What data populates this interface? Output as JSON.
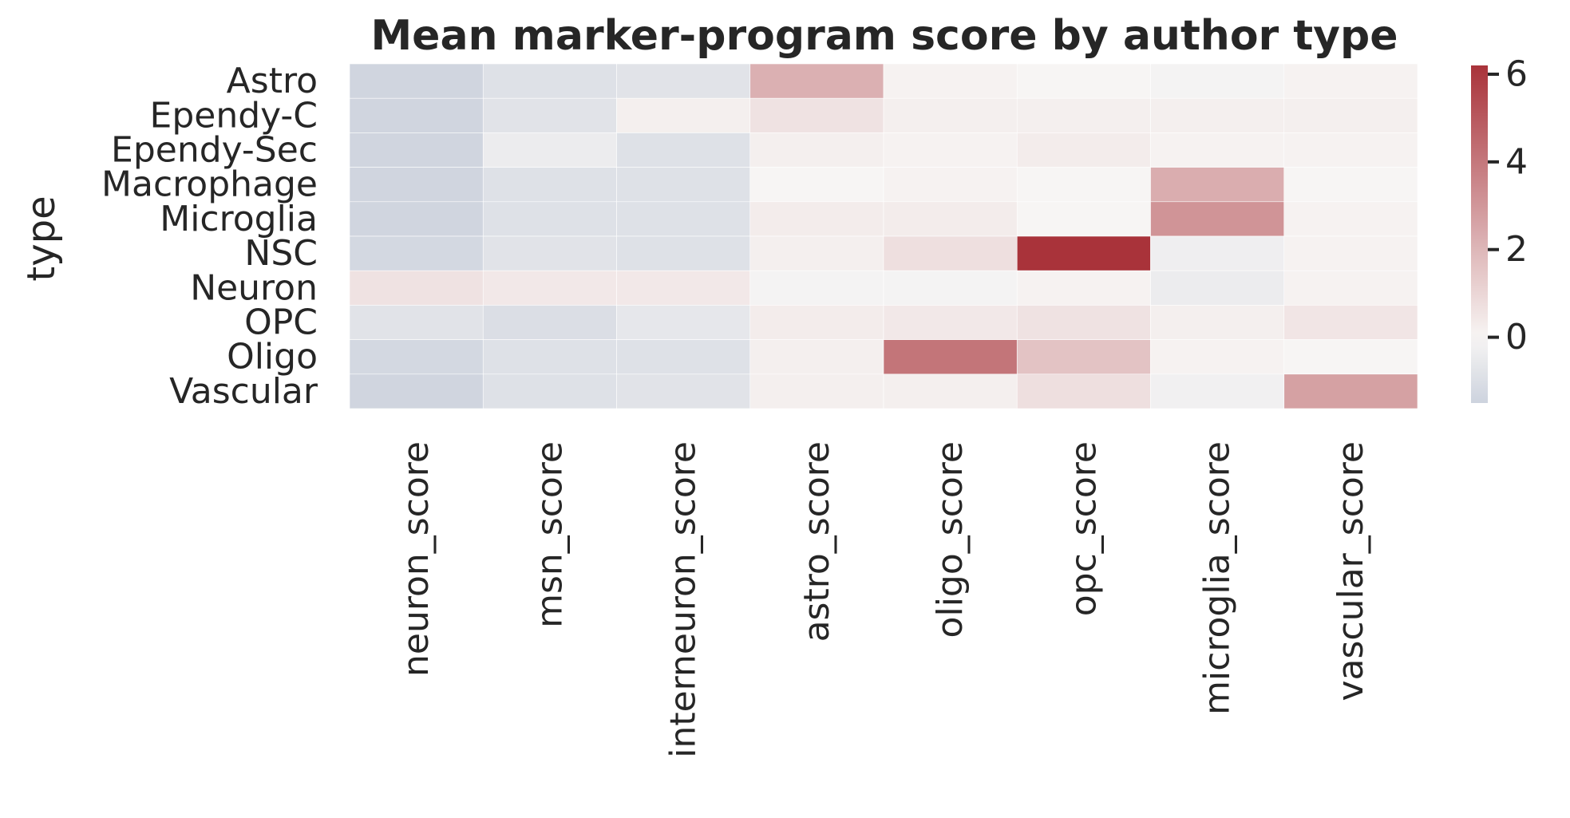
{
  "chart_data": {
    "type": "heatmap",
    "title": "Mean marker-program score by author type",
    "xlabel": "",
    "ylabel": "type",
    "columns": [
      "neuron_score",
      "msn_score",
      "interneuron_score",
      "astro_score",
      "oligo_score",
      "opc_score",
      "microglia_score",
      "vascular_score"
    ],
    "rows": [
      "Astro",
      "Ependy-C",
      "Ependy-Sec",
      "Macrophage",
      "Microglia",
      "NSC",
      "Neuron",
      "OPC",
      "Oligo",
      "Vascular"
    ],
    "values": [
      [
        -1.4,
        -0.9,
        -0.8,
        2.2,
        0.1,
        0.0,
        -0.1,
        0.1
      ],
      [
        -1.4,
        -0.8,
        0.2,
        0.6,
        0.2,
        0.2,
        0.2,
        0.2
      ],
      [
        -1.4,
        -0.4,
        -0.9,
        0.2,
        0.1,
        0.3,
        0.1,
        0.1
      ],
      [
        -1.4,
        -0.9,
        -0.9,
        0.0,
        0.1,
        0.0,
        2.3,
        0.0
      ],
      [
        -1.4,
        -0.9,
        -0.9,
        0.3,
        0.3,
        0.0,
        3.1,
        0.1
      ],
      [
        -1.3,
        -0.8,
        -0.9,
        0.2,
        0.7,
        6.2,
        -0.3,
        0.1
      ],
      [
        0.6,
        0.4,
        0.4,
        -0.1,
        -0.1,
        0.1,
        -0.4,
        0.1
      ],
      [
        -0.8,
        -1.0,
        -0.6,
        0.3,
        0.4,
        0.6,
        0.2,
        0.5
      ],
      [
        -1.3,
        -0.9,
        -0.9,
        0.2,
        4.1,
        1.6,
        0.1,
        0.0
      ],
      [
        -1.4,
        -0.9,
        -0.8,
        0.2,
        0.2,
        0.7,
        -0.2,
        2.7
      ]
    ],
    "vmin": -1.5,
    "vmax": 6.2,
    "center": 0,
    "colorbar_ticks": [
      "0",
      "2",
      "4",
      "6"
    ],
    "colorbar_tick_values": [
      0,
      2,
      4,
      6
    ],
    "colormap": {
      "low": "#cdd3de",
      "mid": "#f7f5f4",
      "high": "#a9333a"
    },
    "legend_position": "right"
  }
}
